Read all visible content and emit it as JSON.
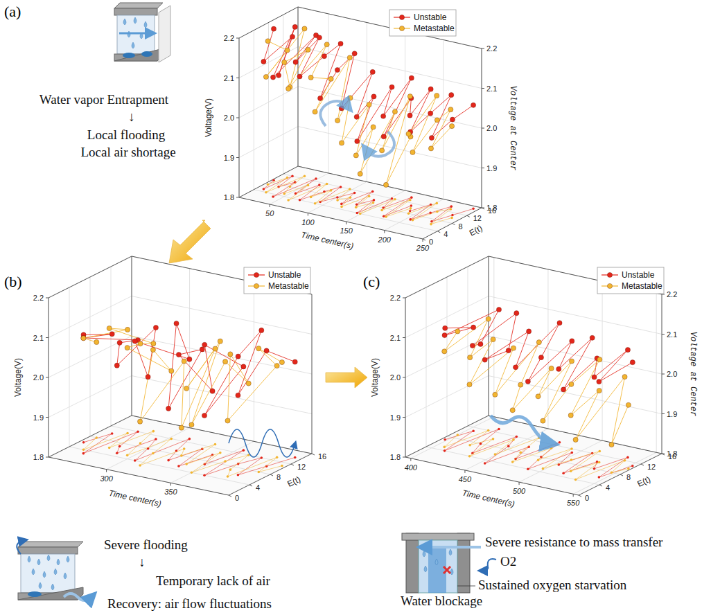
{
  "chart_data": [
    {
      "type": "scatter3d",
      "label": "(a)",
      "x_label": "Time center(s)",
      "y_label": "Voltage(V)",
      "z_label": "E(t)",
      "y2_label": "Voltage at Center",
      "xlim": [
        10,
        250
      ],
      "xticks": [
        50,
        100,
        150,
        200,
        250
      ],
      "ylim": [
        1.8,
        2.2
      ],
      "yticks": [
        1.8,
        1.9,
        {
          "value": 2,
          "label": "2.0"
        },
        2.1,
        2.2
      ],
      "zlim": [
        0,
        16
      ],
      "zticks": [
        0,
        4,
        8,
        12,
        16
      ],
      "grid": true,
      "legend": "top-right",
      "annotations": [
        "Water vapor Entrapment",
        "↓",
        "Local flooding",
        "Local air shortage"
      ],
      "series": [
        {
          "name": "Unstable",
          "color": "#e3261b",
          "marker": "circle",
          "x": [
            12,
            18,
            22,
            28,
            35,
            40,
            48,
            55,
            62,
            70,
            78,
            85,
            92,
            100,
            108,
            115,
            122,
            130,
            138,
            145,
            152,
            160,
            168,
            175,
            182,
            190,
            198,
            205,
            212,
            220,
            228,
            236,
            244
          ],
          "e": [
            9,
            5,
            12,
            7,
            10,
            3,
            13,
            6,
            11,
            4,
            9,
            12,
            5,
            8,
            11,
            6,
            13,
            7,
            10,
            4,
            12,
            8,
            14,
            5,
            11,
            9,
            13,
            6,
            10,
            14,
            7,
            11,
            15
          ],
          "values": [
            2.18,
            2.12,
            2.15,
            2.08,
            2.19,
            2.1,
            2.16,
            2.13,
            2.17,
            2.11,
            2.14,
            2.16,
            2.06,
            2.12,
            2.15,
            2.04,
            2.1,
            2.02,
            2.06,
            1.98,
            2.08,
            2.03,
            2.1,
            2.0,
            2.07,
            2.04,
            2.09,
            2.02,
            2.05,
            2.08,
            2.01,
            2.04,
            2.06
          ]
        },
        {
          "name": "Metastable",
          "color": "#f2b530",
          "marker": "circle",
          "x": [
            14,
            20,
            26,
            33,
            38,
            45,
            52,
            60,
            67,
            75,
            82,
            90,
            97,
            105,
            112,
            120,
            127,
            134,
            142,
            149,
            156,
            163,
            171,
            178,
            186,
            193,
            201,
            208,
            216,
            224,
            232,
            240
          ],
          "e": [
            7,
            11,
            4,
            13,
            8,
            5,
            10,
            3,
            12,
            6,
            10,
            4,
            12,
            7,
            9,
            5,
            11,
            6,
            9,
            4,
            12,
            7,
            13,
            5,
            10,
            8,
            14,
            6,
            11,
            13,
            6,
            10
          ],
          "values": [
            2.16,
            2.12,
            2.09,
            2.17,
            2.05,
            2.13,
            2.14,
            2.08,
            2.15,
            2.1,
            2.08,
            2.03,
            2.13,
            2.0,
            2.05,
            1.96,
            2.03,
            1.93,
            1.99,
            1.9,
            2.02,
            1.95,
            2.06,
            1.88,
            1.98,
            2.0,
            2.07,
            1.97,
            2.03,
            2.05,
            1.99,
            2.03
          ]
        }
      ]
    },
    {
      "type": "scatter3d",
      "label": "(b)",
      "x_label": "Time center(s)",
      "y_label": "Voltage(V)",
      "z_label": "E(t)",
      "xlim": [
        255,
        395
      ],
      "xticks": [
        300,
        350
      ],
      "ylim": [
        1.8,
        2.2
      ],
      "yticks": [
        1.8,
        1.9,
        {
          "value": 2,
          "label": "2.0"
        },
        2.1,
        2.2
      ],
      "zlim": [
        0,
        16
      ],
      "zticks": [
        0,
        4,
        8,
        12,
        16
      ],
      "grid": true,
      "legend": "top-right",
      "annotations": [
        "Severe flooding",
        "↓",
        "Temporary lack of air",
        "Recovery: air flow fluctuations"
      ],
      "series": [
        {
          "name": "Unstable",
          "color": "#e3261b",
          "marker": "circle",
          "x": [
            258,
            264,
            270,
            276,
            282,
            288,
            294,
            300,
            306,
            312,
            318,
            324,
            330,
            336,
            342,
            348,
            354,
            360,
            366,
            372,
            378,
            384,
            390
          ],
          "e": [
            6,
            10,
            3,
            12,
            7,
            5,
            11,
            8,
            4,
            13,
            9,
            6,
            11,
            5,
            10,
            7,
            13,
            4,
            9,
            12,
            6,
            10,
            14
          ],
          "values": [
            2.07,
            2.05,
            2.09,
            2.03,
            2.06,
            2.02,
            2.08,
            1.98,
            2.1,
            2.0,
            2.12,
            1.93,
            2.05,
            2.08,
            1.96,
            2.1,
            2.01,
            1.95,
            2.07,
            2.12,
            2.0,
            2.09,
            2.04
          ]
        },
        {
          "name": "Metastable",
          "color": "#f2b530",
          "marker": "circle",
          "x": [
            260,
            266,
            272,
            278,
            284,
            290,
            296,
            302,
            308,
            314,
            320,
            326,
            332,
            338,
            344,
            350,
            356,
            362,
            368,
            374,
            380,
            386,
            392
          ],
          "e": [
            8,
            4,
            11,
            6,
            13,
            9,
            5,
            12,
            7,
            3,
            10,
            8,
            13,
            6,
            11,
            4,
            9,
            12,
            7,
            5,
            13,
            8,
            11
          ],
          "values": [
            2.04,
            2.08,
            2.06,
            2.1,
            2.02,
            2.05,
            2.07,
            1.97,
            2.06,
            1.91,
            2.02,
            1.87,
            2.04,
            1.99,
            2.08,
            1.92,
            2.05,
            1.98,
            2.09,
            1.94,
            2.03,
            2.11,
            2.06
          ]
        }
      ]
    },
    {
      "type": "scatter3d",
      "label": "(c)",
      "x_label": "Time center(s)",
      "y_label": "Voltage(V)",
      "z_label": "E(t)",
      "y2_label": "Voltage at Center",
      "xlim": [
        395,
        555
      ],
      "xticks": [
        400,
        450,
        500,
        550
      ],
      "ylim": [
        1.8,
        2.2
      ],
      "yticks": [
        1.8,
        1.9,
        {
          "value": 2,
          "label": "2.0"
        },
        2.1,
        2.2
      ],
      "zlim": [
        0,
        16
      ],
      "zticks": [
        0,
        4,
        8,
        12,
        16
      ],
      "grid": true,
      "legend": "top-right",
      "annotations": [
        "Severe resistance to mass transfer",
        "O2",
        "Water blockage",
        "Sustained oxygen starvation"
      ],
      "series": [
        {
          "name": "Unstable",
          "color": "#e3261b",
          "marker": "circle",
          "x": [
            398,
            405,
            412,
            419,
            426,
            433,
            440,
            447,
            454,
            461,
            468,
            475,
            482,
            489,
            496,
            503,
            510,
            517,
            524,
            531,
            538,
            545,
            552
          ],
          "e": [
            7,
            11,
            4,
            13,
            8,
            5,
            12,
            9,
            3,
            10,
            6,
            13,
            8,
            4,
            11,
            7,
            12,
            5,
            10,
            8,
            13,
            6,
            11
          ],
          "values": [
            2.08,
            2.06,
            2.09,
            2.1,
            2.05,
            2.07,
            2.11,
            2.04,
            2.06,
            2.09,
            2.03,
            2.1,
            2.05,
            2.02,
            2.08,
            2.04,
            2.09,
            2.01,
            2.06,
            2.03,
            2.07,
            2.04,
            2.06
          ]
        },
        {
          "name": "Metastable",
          "color": "#f2b530",
          "marker": "circle",
          "x": [
            400,
            407,
            414,
            421,
            428,
            435,
            442,
            449,
            456,
            463,
            470,
            477,
            484,
            491,
            498,
            505,
            512,
            519,
            526,
            533,
            540,
            547,
            553
          ],
          "e": [
            9,
            5,
            12,
            7,
            10,
            4,
            11,
            6,
            13,
            8,
            5,
            11,
            7,
            12,
            5,
            9,
            13,
            6,
            10,
            4,
            12,
            8,
            10
          ],
          "values": [
            2.06,
            2.04,
            2.08,
            2.02,
            2.05,
            1.98,
            2.03,
            1.95,
            2.04,
            1.97,
            1.93,
            2.0,
            1.96,
            2.02,
            1.92,
            1.99,
            2.03,
            1.94,
            1.98,
            1.9,
            2.01,
            1.87,
            1.96
          ]
        }
      ]
    }
  ]
}
